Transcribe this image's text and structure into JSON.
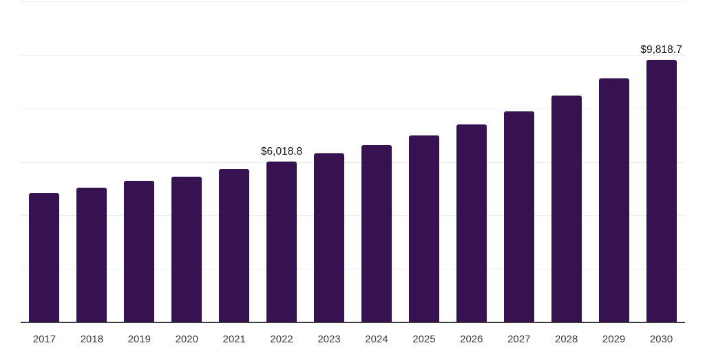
{
  "chart_data": {
    "type": "bar",
    "title": "",
    "xlabel": "",
    "ylabel": "",
    "categories": [
      "2017",
      "2018",
      "2019",
      "2020",
      "2021",
      "2022",
      "2023",
      "2024",
      "2025",
      "2026",
      "2027",
      "2028",
      "2029",
      "2030"
    ],
    "values": [
      4830,
      5030,
      5300,
      5440,
      5740,
      6018.8,
      6320,
      6640,
      7000,
      7410,
      7900,
      8480,
      9110,
      9818.7
    ],
    "ylim": [
      0,
      12000
    ],
    "gridline_step": 2000,
    "grid": true,
    "y_axis_labels_visible": false,
    "legend": "none",
    "annotations": [
      {
        "category": "2022",
        "text": "$6,018.8"
      },
      {
        "category": "2030",
        "text": "$9,818.7"
      }
    ],
    "colors": {
      "bar": "#371250",
      "gridline": "#ededed",
      "axis_line": "#3c3c3c",
      "tick_label": "#3d3d3d",
      "annotation": "#141414",
      "background": "#ffffff"
    }
  }
}
